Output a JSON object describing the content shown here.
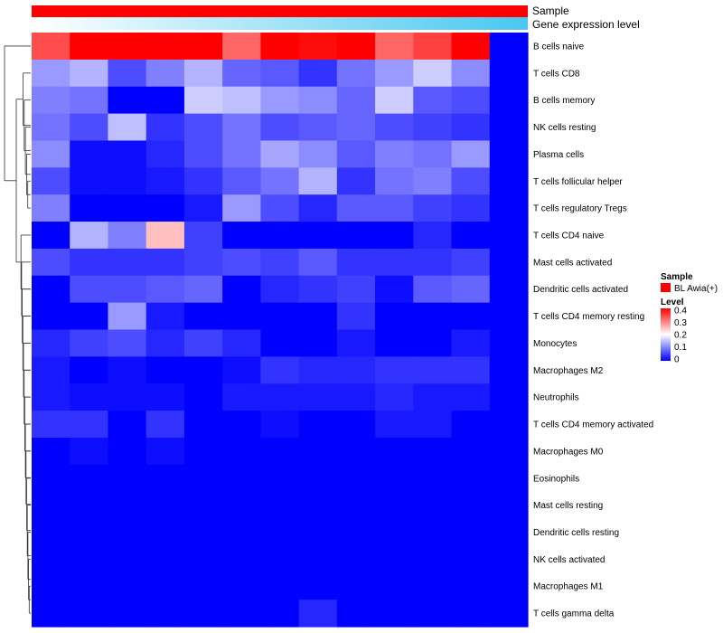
{
  "chart_data": {
    "type": "heatmap",
    "title": "",
    "columns_count": 13,
    "column_annotations": [
      {
        "label": "Sample",
        "color": "#ff0000"
      },
      {
        "label": "Gene expression level",
        "gradient": [
          "#ffffff",
          "#48c8f0"
        ]
      }
    ],
    "rows": [
      "B cells naive",
      "T cells CD8",
      "B cells memory",
      "NK cells resting",
      "Plasma cells",
      "T cells follicular helper",
      "T cells regulatory  Tregs",
      "T cells CD4 naive",
      "Mast cells activated",
      "Dendritic cells activated",
      "T cells CD4 memory resting",
      "Monocytes",
      "Macrophages M2",
      "Neutrophils",
      "T cells CD4 memory activated",
      "Macrophages M0",
      "Eosinophils",
      "Mast cells resting",
      "Dendritic cells resting",
      "NK cells activated",
      "Macrophages M1",
      "T cells gamma delta"
    ],
    "values": [
      [
        0.34,
        0.45,
        0.45,
        0.43,
        0.4,
        0.32,
        0.4,
        0.39,
        0.45,
        0.32,
        0.35,
        0.41,
        0.0
      ],
      [
        0.12,
        0.14,
        0.06,
        0.1,
        0.14,
        0.08,
        0.07,
        0.04,
        0.09,
        0.12,
        0.16,
        0.11,
        0.0
      ],
      [
        0.1,
        0.09,
        0.0,
        0.0,
        0.16,
        0.15,
        0.12,
        0.11,
        0.08,
        0.16,
        0.07,
        0.06,
        0.0
      ],
      [
        0.09,
        0.06,
        0.15,
        0.04,
        0.06,
        0.09,
        0.06,
        0.07,
        0.08,
        0.06,
        0.05,
        0.04,
        0.0
      ],
      [
        0.11,
        0.01,
        0.01,
        0.03,
        0.06,
        0.09,
        0.13,
        0.11,
        0.07,
        0.1,
        0.09,
        0.12,
        0.0
      ],
      [
        0.06,
        0.01,
        0.01,
        0.02,
        0.04,
        0.07,
        0.09,
        0.14,
        0.04,
        0.09,
        0.1,
        0.06,
        0.0
      ],
      [
        0.1,
        0.0,
        0.0,
        0.0,
        0.02,
        0.12,
        0.06,
        0.03,
        0.07,
        0.07,
        0.05,
        0.04,
        0.0
      ],
      [
        0.0,
        0.14,
        0.1,
        0.25,
        0.05,
        0.0,
        0.0,
        0.0,
        0.0,
        0.0,
        0.03,
        0.0,
        0.0
      ],
      [
        0.06,
        0.04,
        0.04,
        0.04,
        0.05,
        0.06,
        0.05,
        0.07,
        0.04,
        0.04,
        0.04,
        0.05,
        0.0
      ],
      [
        0.0,
        0.06,
        0.06,
        0.07,
        0.08,
        0.0,
        0.03,
        0.04,
        0.05,
        0.01,
        0.07,
        0.08,
        0.0
      ],
      [
        0.0,
        0.0,
        0.12,
        0.02,
        0.0,
        0.0,
        0.0,
        0.0,
        0.04,
        0.0,
        0.0,
        0.0,
        0.0
      ],
      [
        0.03,
        0.05,
        0.06,
        0.03,
        0.05,
        0.03,
        0.0,
        0.0,
        0.02,
        0.0,
        0.0,
        0.02,
        0.0
      ],
      [
        0.02,
        0.0,
        0.01,
        0.0,
        0.0,
        0.01,
        0.04,
        0.03,
        0.03,
        0.04,
        0.04,
        0.04,
        0.0
      ],
      [
        0.02,
        0.01,
        0.01,
        0.01,
        0.0,
        0.02,
        0.02,
        0.02,
        0.02,
        0.03,
        0.02,
        0.02,
        0.0
      ],
      [
        0.04,
        0.04,
        0.0,
        0.04,
        0.0,
        0.0,
        0.01,
        0.0,
        0.0,
        0.02,
        0.02,
        0.0,
        0.0
      ],
      [
        0.0,
        0.01,
        0.0,
        0.01,
        0.0,
        0.0,
        0.0,
        0.0,
        0.0,
        0.0,
        0.0,
        0.0,
        0.0
      ],
      [
        0.0,
        0.0,
        0.0,
        0.0,
        0.0,
        0.0,
        0.0,
        0.0,
        0.0,
        0.0,
        0.0,
        0.0,
        0.0
      ],
      [
        0.0,
        0.0,
        0.0,
        0.0,
        0.0,
        0.0,
        0.0,
        0.0,
        0.0,
        0.0,
        0.0,
        0.0,
        0.0
      ],
      [
        0.0,
        0.0,
        0.0,
        0.0,
        0.0,
        0.0,
        0.0,
        0.0,
        0.0,
        0.0,
        0.0,
        0.0,
        0.0
      ],
      [
        0.0,
        0.0,
        0.0,
        0.0,
        0.0,
        0.0,
        0.0,
        0.0,
        0.0,
        0.0,
        0.0,
        0.0,
        0.0
      ],
      [
        0.0,
        0.0,
        0.0,
        0.0,
        0.0,
        0.0,
        0.0,
        0.0,
        0.0,
        0.0,
        0.0,
        0.0,
        0.0
      ],
      [
        0.0,
        0.0,
        0.0,
        0.0,
        0.0,
        0.0,
        0.0,
        0.03,
        0.0,
        0.0,
        0.0,
        0.0,
        0.0
      ]
    ],
    "color_scale": {
      "min": 0,
      "mid": 0.2,
      "max": 0.4,
      "low_color": "#0000ff",
      "mid_color": "#ffffff",
      "high_color": "#ff0000"
    },
    "legend": {
      "sample_title": "Sample",
      "sample_entry": "BL Awia(+)",
      "sample_color": "#ff0000",
      "level_title": "Level",
      "level_ticks": [
        "0.4",
        "0.3",
        "0.2",
        "0.1",
        "0"
      ],
      "position": "right"
    },
    "row_dendrogram": true
  }
}
